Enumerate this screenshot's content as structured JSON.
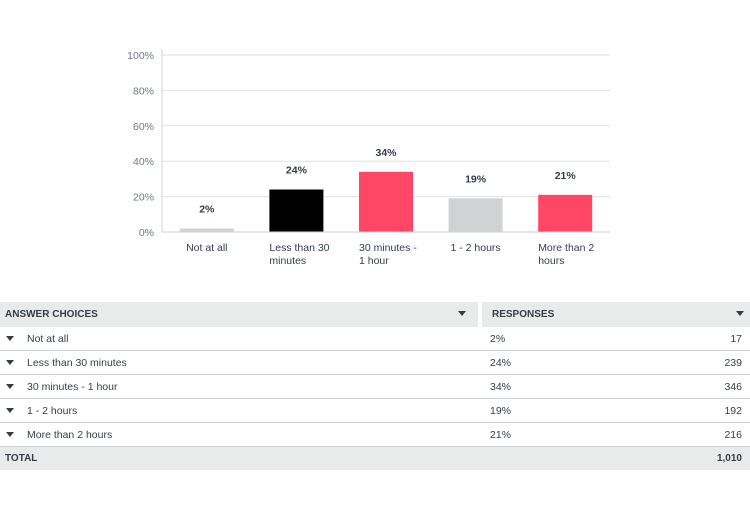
{
  "chart_data": {
    "type": "bar",
    "categories": [
      "Not at all",
      "Less than 30 minutes",
      "30 minutes - 1 hour",
      "1 - 2 hours",
      "More than 2 hours"
    ],
    "category_lines": [
      [
        "Not at all"
      ],
      [
        "Less than 30",
        "minutes"
      ],
      [
        "30 minutes -",
        "1 hour"
      ],
      [
        "1 - 2 hours"
      ],
      [
        "More than 2",
        "hours"
      ]
    ],
    "values": [
      2,
      24,
      34,
      19,
      21
    ],
    "data_labels": [
      "2%",
      "24%",
      "34%",
      "19%",
      "21%"
    ],
    "bar_colors": [
      "#d0d2d3",
      "#000000",
      "#ff4664",
      "#d0d2d3",
      "#ff4664"
    ],
    "ylim": [
      0,
      100
    ],
    "yticks": [
      0,
      20,
      40,
      60,
      80,
      100
    ],
    "ytick_labels": [
      "0%",
      "20%",
      "40%",
      "60%",
      "80%",
      "100%"
    ],
    "grid": true,
    "title": "",
    "xlabel": "",
    "ylabel": ""
  },
  "table": {
    "headers": {
      "choices": "ANSWER CHOICES",
      "responses": "RESPONSES"
    },
    "rows": [
      {
        "choice": "Not at all",
        "percent": "2%",
        "count": "17"
      },
      {
        "choice": "Less than 30 minutes",
        "percent": "24%",
        "count": "239"
      },
      {
        "choice": "30 minutes - 1 hour",
        "percent": "34%",
        "count": "346"
      },
      {
        "choice": "1 - 2 hours",
        "percent": "19%",
        "count": "192"
      },
      {
        "choice": "More than 2 hours",
        "percent": "21%",
        "count": "216"
      }
    ],
    "total": {
      "label": "TOTAL",
      "count": "1,010"
    }
  },
  "colors": {
    "header_bg": "#e9eaea",
    "gridline": "#e0e2e3",
    "axis": "#d0d2d3"
  }
}
